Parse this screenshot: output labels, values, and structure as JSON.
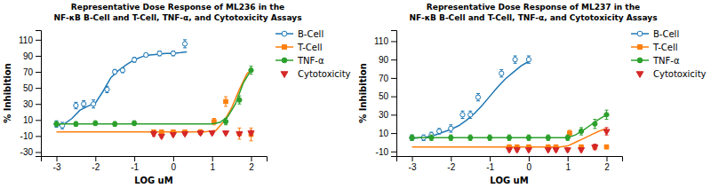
{
  "chart_data": [
    {
      "type": "scatter",
      "title": "Representative Dose Response of ML236 in the\nNF-κB B-Cell and T-Cell, TNF-α, and Cytotoxicity Assays",
      "x_label": "LOG uM",
      "y_label": "% Inhibition",
      "xlim": [
        -3.4,
        2.4
      ],
      "ylim": [
        -35,
        122
      ],
      "xticks": [
        -3,
        -2,
        -1,
        0,
        1,
        2
      ],
      "yticks": [
        -30,
        -10,
        10,
        30,
        50,
        70,
        90,
        110
      ],
      "legend": "right",
      "series": [
        {
          "name": "B-Cell",
          "marker": "circle-open",
          "line_style": "solid",
          "x": [
            -3.0,
            -2.85,
            -2.5,
            -2.3,
            -2.05,
            -1.7,
            -1.5,
            -1.3,
            -1.0,
            -0.7,
            -0.35,
            0.0,
            0.3
          ],
          "values": [
            5,
            3,
            28,
            30,
            30,
            48,
            70,
            72,
            85,
            91,
            93,
            93,
            105
          ],
          "errors": [
            4,
            4,
            4,
            4,
            5,
            4,
            3,
            3,
            3,
            2,
            3,
            3,
            5
          ],
          "curve_x": [
            -3.0,
            -2.8,
            -2.6,
            -2.4,
            -2.2,
            -2.0,
            -1.8,
            -1.6,
            -1.4,
            -1.2,
            -1.0,
            -0.8,
            -0.6,
            -0.4,
            -0.2,
            0.0,
            0.2,
            0.35
          ],
          "curve_values": [
            3,
            5,
            12,
            22,
            27,
            31,
            46,
            63,
            72,
            79,
            85,
            89,
            91,
            92,
            93,
            93,
            94,
            95
          ]
        },
        {
          "name": "T-Cell",
          "marker": "square",
          "line_style": "solid",
          "x": [
            -0.5,
            -0.3,
            0.0,
            0.3,
            0.7,
            1.05,
            1.35,
            1.7,
            2.0
          ],
          "values": [
            -5,
            -5,
            -5,
            -5,
            -5,
            8,
            33,
            -7,
            -8
          ],
          "errors": [
            2,
            2,
            2,
            2,
            3,
            4,
            6,
            7,
            8
          ],
          "curve_x": [
            -3.0,
            -0.5,
            0.0,
            0.8,
            1.1,
            1.3,
            1.5,
            1.7,
            1.9,
            2.0
          ],
          "curve_values": [
            -5,
            -5,
            -5,
            -5,
            -3,
            8,
            25,
            48,
            68,
            72
          ]
        },
        {
          "name": "TNF-α",
          "marker": "circle",
          "line_style": "solid",
          "x": [
            -3.0,
            -2.5,
            -2.0,
            -1.5,
            -1.0,
            1.35,
            1.7,
            2.0
          ],
          "values": [
            5,
            5,
            6,
            5,
            6,
            8,
            35,
            72
          ],
          "errors": [
            3,
            3,
            3,
            3,
            3,
            4,
            5,
            5
          ],
          "curve_x": [
            -3.0,
            -2.0,
            -1.0,
            0.0,
            1.0,
            1.2,
            1.4,
            1.6,
            1.8,
            2.0
          ],
          "curve_values": [
            5,
            5,
            5,
            5,
            5,
            7,
            14,
            30,
            56,
            72
          ]
        },
        {
          "name": "Cytotoxicity",
          "marker": "triangle-down",
          "line_style": "none",
          "x": [
            -0.5,
            -0.3,
            0.0,
            0.3,
            0.7,
            1.0,
            1.35,
            1.7,
            2.0
          ],
          "values": [
            -7,
            -10,
            -8,
            -7,
            -6,
            -6,
            -6,
            -7,
            -6
          ],
          "errors": [
            3,
            2,
            2,
            2,
            2,
            2,
            2,
            2,
            3
          ]
        }
      ]
    },
    {
      "type": "scatter",
      "title": "Representative Dose Response of ML237 in the\nNF-κB B-Cell and T-Cell, TNF-α, and Cytotoxicity Assays",
      "x_label": "LOG uM",
      "y_label": "% Inhibition",
      "xlim": [
        -3.4,
        2.4
      ],
      "ylim": [
        -15,
        122
      ],
      "xticks": [
        -3,
        -2,
        -1,
        0,
        1,
        2
      ],
      "yticks": [
        -10,
        10,
        30,
        50,
        70,
        90,
        110
      ],
      "legend": "right",
      "series": [
        {
          "name": "B-Cell",
          "marker": "circle-open",
          "line_style": "solid",
          "x": [
            -3.0,
            -2.7,
            -2.5,
            -2.3,
            -2.0,
            -1.7,
            -1.5,
            -1.3,
            -0.7,
            -0.35,
            0.0
          ],
          "values": [
            5,
            5,
            8,
            12,
            15,
            30,
            30,
            49,
            75,
            90,
            90
          ],
          "errors": [
            3,
            3,
            3,
            3,
            4,
            4,
            4,
            4,
            4,
            4,
            4
          ],
          "curve_x": [
            -3.0,
            -2.8,
            -2.6,
            -2.4,
            -2.2,
            -2.0,
            -1.8,
            -1.6,
            -1.4,
            -1.2,
            -1.0,
            -0.8,
            -0.6,
            -0.4,
            -0.2,
            0.0
          ],
          "curve_values": [
            4,
            5,
            6,
            8,
            11,
            14,
            18,
            24,
            31,
            40,
            50,
            60,
            69,
            76,
            83,
            88
          ]
        },
        {
          "name": "T-Cell",
          "marker": "square",
          "line_style": "solid",
          "x": [
            -0.5,
            -0.3,
            0.0,
            0.5,
            0.7,
            1.05,
            1.35,
            1.7,
            2.0
          ],
          "values": [
            -5,
            -5,
            -5,
            -5,
            -5,
            10,
            -5,
            -5,
            -5
          ],
          "errors": [
            2,
            2,
            2,
            2,
            2,
            3,
            2,
            2,
            2
          ],
          "curve_x": [
            -3.0,
            0.5,
            0.8,
            1.0,
            1.2,
            1.4,
            1.6,
            1.8,
            2.0
          ],
          "curve_values": [
            -5,
            -5,
            -5,
            -4,
            0,
            4,
            8,
            12,
            15
          ]
        },
        {
          "name": "TNF-α",
          "marker": "circle",
          "line_style": "solid",
          "x": [
            -3.0,
            -2.5,
            -2.0,
            -1.5,
            -1.0,
            -0.5,
            0.0,
            0.5,
            1.0,
            1.35,
            1.7,
            2.0
          ],
          "values": [
            5,
            5,
            5,
            5,
            5,
            5,
            5,
            5,
            5,
            12,
            20,
            30
          ],
          "errors": [
            3,
            3,
            3,
            3,
            3,
            3,
            3,
            3,
            3,
            4,
            5,
            5
          ],
          "curve_x": [
            -3.0,
            -2.0,
            -1.0,
            0.0,
            1.0,
            1.2,
            1.4,
            1.6,
            1.8,
            2.0
          ],
          "curve_values": [
            5,
            5,
            5,
            5,
            5,
            8,
            13,
            19,
            25,
            30
          ]
        },
        {
          "name": "Cytotoxicity",
          "marker": "triangle-down",
          "line_style": "none",
          "x": [
            -0.5,
            -0.3,
            0.0,
            0.5,
            0.7,
            1.0,
            1.35,
            1.7,
            2.0
          ],
          "values": [
            -8,
            -8,
            -8,
            -8,
            -8,
            -8,
            -8,
            -5,
            12
          ],
          "errors": [
            2,
            2,
            2,
            2,
            2,
            2,
            2,
            3,
            4
          ]
        }
      ]
    }
  ]
}
